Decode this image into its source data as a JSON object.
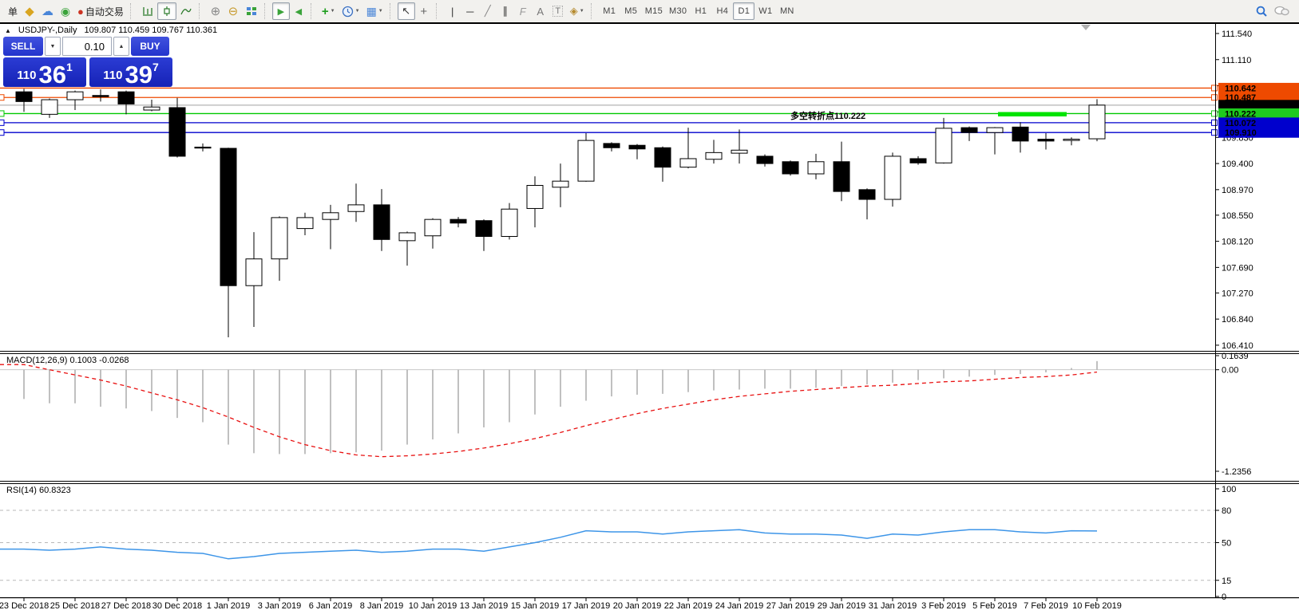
{
  "icons": {
    "cursor": "↖",
    "crosshair": "+",
    "vertical-line": "|",
    "horizontal-line": "─",
    "trendline": "╱",
    "channel": "∥",
    "fibonacci": "F",
    "text": "A",
    "text-label": "T",
    "shapes": "◈",
    "zoom-in": "⊕",
    "zoom-out": "⊖",
    "indicators": "+",
    "template": "▦",
    "autoscroll": "▶",
    "shift": "◀",
    "deposit": "◆",
    "profile": "☁",
    "signals": "◉",
    "autotrade": "●",
    "dropdown": "▼",
    "spinner-down": "▼",
    "spinner-up": "▲",
    "collapse": "▲"
  },
  "toolbar": {
    "partial_label": "单",
    "auto_trading_label": "自动交易",
    "timeframes": [
      "M1",
      "M5",
      "M15",
      "M30",
      "H1",
      "H4",
      "D1",
      "W1",
      "MN"
    ],
    "active_timeframe": "D1"
  },
  "trade_panel": {
    "sell_label": "SELL",
    "buy_label": "BUY",
    "volume": "0.10",
    "sell_price": {
      "small": "110",
      "big": "36",
      "pips": "1"
    },
    "buy_price": {
      "small": "110",
      "big": "39",
      "pips": "7"
    }
  },
  "chart_header": {
    "title": "USDJPY-,Daily",
    "ohlc": "109.807 110.459 109.767 110.361"
  },
  "chart_data": [
    {
      "type": "candlestick",
      "symbol": "USDJPY-",
      "timeframe": "Daily",
      "title": "USDJPY-,Daily 109.807 110.459 109.767 110.361",
      "x_labels": [
        "23 Dec 2018",
        "25 Dec 2018",
        "27 Dec 2018",
        "30 Dec 2018",
        "1 Jan 2019",
        "3 Jan 2019",
        "6 Jan 2019",
        "8 Jan 2019",
        "10 Jan 2019",
        "13 Jan 2019",
        "15 Jan 2019",
        "17 Jan 2019",
        "20 Jan 2019",
        "22 Jan 2019",
        "24 Jan 2019",
        "27 Jan 2019",
        "29 Jan 2019",
        "31 Jan 2019",
        "3 Feb 2019",
        "5 Feb 2019",
        "7 Feb 2019",
        "10 Feb 2019"
      ],
      "y_ticks": [
        "111.540",
        "111.110",
        "110.680",
        "110.250",
        "109.830",
        "109.400",
        "108.970",
        "108.550",
        "108.120",
        "107.690",
        "107.270",
        "106.840",
        "106.410"
      ],
      "ylim": [
        106.28,
        111.66
      ],
      "grid": false,
      "candles": [
        [
          110.58,
          110.63,
          110.25,
          110.42
        ],
        [
          110.21,
          110.47,
          110.15,
          110.45
        ],
        [
          110.45,
          110.6,
          110.28,
          110.58
        ],
        [
          110.52,
          110.62,
          110.42,
          110.5
        ],
        [
          110.58,
          110.6,
          110.21,
          110.38
        ],
        [
          110.28,
          110.45,
          110.26,
          110.33
        ],
        [
          110.32,
          110.48,
          109.5,
          109.52
        ],
        [
          109.67,
          109.73,
          109.6,
          109.66
        ],
        [
          109.65,
          109.66,
          106.54,
          107.39
        ],
        [
          107.39,
          108.27,
          106.71,
          107.83
        ],
        [
          107.83,
          108.53,
          107.47,
          108.51
        ],
        [
          108.33,
          108.59,
          108.22,
          108.51
        ],
        [
          108.48,
          108.72,
          107.99,
          108.59
        ],
        [
          108.61,
          109.07,
          108.44,
          108.72
        ],
        [
          108.72,
          108.98,
          107.96,
          108.15
        ],
        [
          108.13,
          108.28,
          107.72,
          108.26
        ],
        [
          108.21,
          108.5,
          108.0,
          108.48
        ],
        [
          108.48,
          108.52,
          108.35,
          108.42
        ],
        [
          108.46,
          108.48,
          107.96,
          108.2
        ],
        [
          108.2,
          108.75,
          108.15,
          108.65
        ],
        [
          108.66,
          109.19,
          108.35,
          109.04
        ],
        [
          109.01,
          109.4,
          108.68,
          109.11
        ],
        [
          109.11,
          109.9,
          109.1,
          109.78
        ],
        [
          109.73,
          109.75,
          109.6,
          109.66
        ],
        [
          109.7,
          109.72,
          109.47,
          109.64
        ],
        [
          109.66,
          109.68,
          109.1,
          109.34
        ],
        [
          109.34,
          109.99,
          109.32,
          109.48
        ],
        [
          109.47,
          109.79,
          109.4,
          109.58
        ],
        [
          109.57,
          109.96,
          109.4,
          109.62
        ],
        [
          109.52,
          109.55,
          109.35,
          109.4
        ],
        [
          109.43,
          109.45,
          109.2,
          109.23
        ],
        [
          109.23,
          109.56,
          109.14,
          109.43
        ],
        [
          109.43,
          109.76,
          108.78,
          108.94
        ],
        [
          108.97,
          108.99,
          108.48,
          108.81
        ],
        [
          108.81,
          109.58,
          108.69,
          109.52
        ],
        [
          109.48,
          109.52,
          109.38,
          109.41
        ],
        [
          109.41,
          110.15,
          109.4,
          109.98
        ],
        [
          109.99,
          110.01,
          109.77,
          109.91
        ],
        [
          109.91,
          110.0,
          109.55,
          109.99
        ],
        [
          110.0,
          110.08,
          109.58,
          109.77
        ],
        [
          109.8,
          109.9,
          109.63,
          109.77
        ],
        [
          109.78,
          109.83,
          109.7,
          109.8
        ],
        [
          109.807,
          110.459,
          109.767,
          110.361
        ]
      ],
      "hlines": [
        {
          "price": 110.642,
          "color": "#ee4a00",
          "left_handle": false
        },
        {
          "price": 110.487,
          "color": "#ee4a00",
          "left_handle": true
        },
        {
          "price": 110.222,
          "color": "#00c800",
          "left_handle": true
        },
        {
          "price": 110.072,
          "color": "#0000cd",
          "left_handle": true
        },
        {
          "price": 109.91,
          "color": "#0000cd",
          "left_handle": true
        }
      ],
      "current_price": {
        "value": 110.361,
        "line_color": "#b4b4b4"
      },
      "price_tags": [
        {
          "value": "110.642",
          "bg": "#ee4a00",
          "text": "#ffffff",
          "handle": true
        },
        {
          "value": "110.487",
          "bg": "#ee4a00",
          "text": "#ffffff",
          "handle": true
        },
        {
          "value": "110.361",
          "bg": "#000000",
          "text": "#ffffff",
          "handle": false
        },
        {
          "value": "110.222",
          "bg": "#1ecb1e",
          "text": "#000000",
          "handle": true
        },
        {
          "value": "110.072",
          "bg": "#0000cd",
          "text": "#ffffff",
          "handle": true
        },
        {
          "value": "109.910",
          "bg": "#0000cd",
          "text": "#ffffff",
          "handle": true
        }
      ],
      "annotation": {
        "text": "多空转折点110.222",
        "color": "#00dd00"
      },
      "highlight_segment": {
        "color": "#00e400"
      }
    },
    {
      "type": "bar",
      "name": "MACD",
      "label": "MACD(12,26,9) 0.1003 -0.0268",
      "axis_labels": [
        "0.1639",
        "0.00",
        "-1.2356"
      ],
      "ymax": 0.1639,
      "ymin": -1.2356,
      "bar_color": "#b0b0b0",
      "signal_color": "#e81010",
      "values": [
        -0.34,
        -0.39,
        -0.39,
        -0.43,
        -0.45,
        -0.48,
        -0.56,
        -0.61,
        -0.87,
        -0.97,
        -0.98,
        -0.98,
        -0.97,
        -0.96,
        -0.94,
        -0.87,
        -0.81,
        -0.74,
        -0.67,
        -0.61,
        -0.52,
        -0.43,
        -0.36,
        -0.31,
        -0.29,
        -0.28,
        -0.26,
        -0.24,
        -0.23,
        -0.22,
        -0.22,
        -0.21,
        -0.19,
        -0.17,
        -0.15,
        -0.12,
        -0.1,
        -0.08,
        -0.06,
        -0.05,
        -0.03,
        0.02,
        0.1003
      ],
      "signal": [
        0.06,
        0.0,
        -0.06,
        -0.12,
        -0.19,
        -0.27,
        -0.35,
        -0.44,
        -0.55,
        -0.67,
        -0.78,
        -0.87,
        -0.94,
        -0.99,
        -1.01,
        -1.0,
        -0.98,
        -0.95,
        -0.91,
        -0.86,
        -0.8,
        -0.73,
        -0.65,
        -0.58,
        -0.51,
        -0.45,
        -0.4,
        -0.35,
        -0.31,
        -0.28,
        -0.25,
        -0.23,
        -0.21,
        -0.19,
        -0.18,
        -0.16,
        -0.14,
        -0.13,
        -0.11,
        -0.09,
        -0.08,
        -0.06,
        -0.0268
      ]
    },
    {
      "type": "line",
      "name": "RSI",
      "label": "RSI(14) 60.8323",
      "axis_labels": [
        "100",
        "80",
        "50",
        "15",
        "0"
      ],
      "ymax": 100,
      "ymin": 0,
      "levels": [
        80,
        50,
        15
      ],
      "line_color": "#3d95e8",
      "values": [
        44,
        43,
        44,
        46,
        44,
        43,
        41,
        40,
        35,
        37,
        40,
        41,
        42,
        43,
        41,
        42,
        44,
        44,
        42,
        46,
        50,
        55,
        61,
        60,
        60,
        58,
        60,
        61,
        62,
        59,
        58,
        58,
        57,
        54,
        58,
        57,
        60,
        62,
        62,
        60,
        59,
        61,
        60.8323
      ]
    }
  ]
}
